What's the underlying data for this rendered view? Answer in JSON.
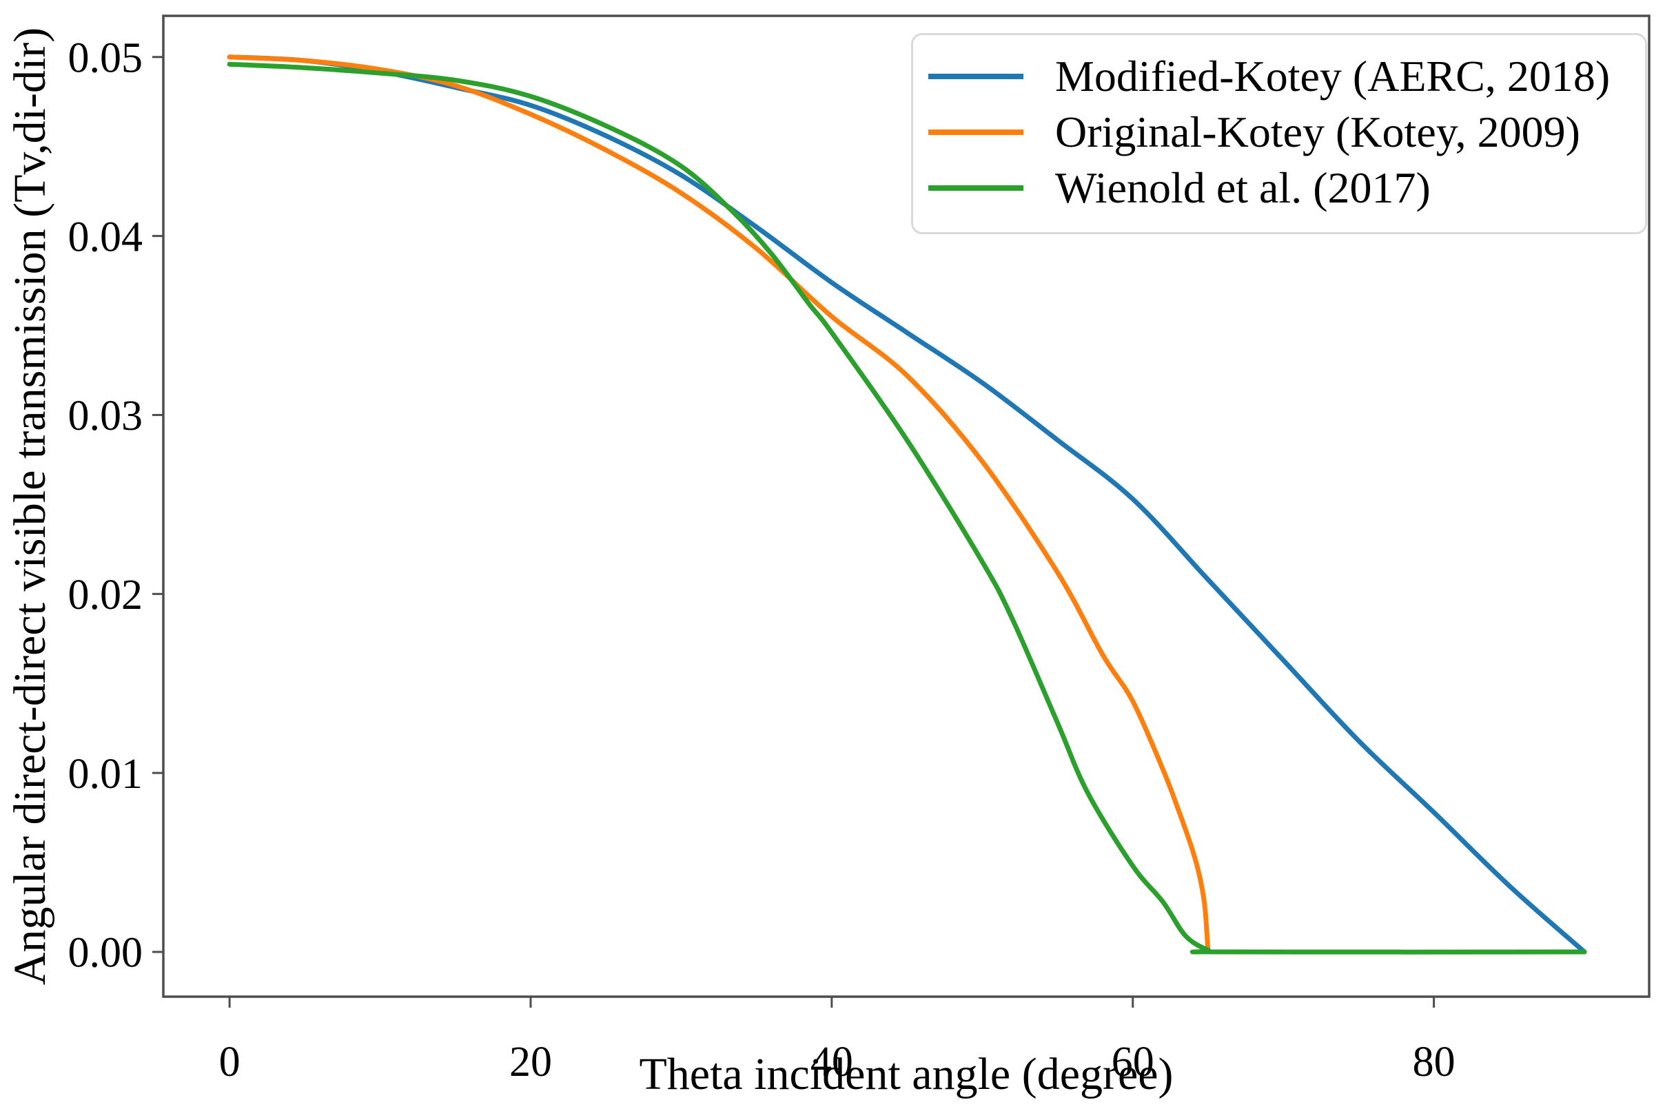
{
  "figure": {
    "background": "#ffffff",
    "text_color": "#000000",
    "axis_color": "#4d4d4d"
  },
  "chart_data": {
    "type": "line",
    "title": "",
    "xlabel": "Theta incident angle (degree)",
    "ylabel": "Angular direct-direct visible transmission (Tv,di-dir)",
    "xlim": [
      -4.4,
      94.3
    ],
    "ylim": [
      -0.0025,
      0.0523
    ],
    "grid": false,
    "legend_position": "upper right",
    "x_ticks": [
      {
        "value": 0,
        "label": "0"
      },
      {
        "value": 20,
        "label": "20"
      },
      {
        "value": 40,
        "label": "40"
      },
      {
        "value": 60,
        "label": "60"
      },
      {
        "value": 80,
        "label": "80"
      }
    ],
    "y_ticks": [
      {
        "value": 0.0,
        "label": "0.00"
      },
      {
        "value": 0.01,
        "label": "0.01"
      },
      {
        "value": 0.02,
        "label": "0.02"
      },
      {
        "value": 0.03,
        "label": "0.03"
      },
      {
        "value": 0.04,
        "label": "0.04"
      },
      {
        "value": 0.05,
        "label": "0.05"
      }
    ],
    "series": [
      {
        "name": "Modified-Kotey (AERC, 2018)",
        "color": "#1f77b4",
        "points": [
          [
            0,
            0.05
          ],
          [
            5,
            0.0498
          ],
          [
            10,
            0.0492
          ],
          [
            15,
            0.0483
          ],
          [
            20,
            0.0473
          ],
          [
            25,
            0.0456
          ],
          [
            30,
            0.0434
          ],
          [
            35,
            0.0405
          ],
          [
            40,
            0.0374
          ],
          [
            45,
            0.0346
          ],
          [
            50,
            0.0318
          ],
          [
            55,
            0.0286
          ],
          [
            60,
            0.0253
          ],
          [
            65,
            0.0208
          ],
          [
            70,
            0.0163
          ],
          [
            75,
            0.0118
          ],
          [
            80,
            0.0078
          ],
          [
            85,
            0.0037
          ],
          [
            90,
            0.0
          ]
        ]
      },
      {
        "name": "Original-Kotey (Kotey, 2009)",
        "color": "#ff7f0e",
        "points": [
          [
            0,
            0.05
          ],
          [
            5,
            0.0498
          ],
          [
            10,
            0.0493
          ],
          [
            15,
            0.0484
          ],
          [
            20,
            0.0468
          ],
          [
            25,
            0.0448
          ],
          [
            30,
            0.0424
          ],
          [
            35,
            0.0393
          ],
          [
            40,
            0.0355
          ],
          [
            45,
            0.0322
          ],
          [
            50,
            0.0274
          ],
          [
            55,
            0.0212
          ],
          [
            58,
            0.0166
          ],
          [
            60,
            0.014
          ],
          [
            62,
            0.0102
          ],
          [
            63,
            0.008
          ],
          [
            64,
            0.0056
          ],
          [
            64.5,
            0.004
          ],
          [
            64.8,
            0.0024
          ],
          [
            65,
            0.0
          ]
        ]
      },
      {
        "name": "Wienold et al. (2017)",
        "color": "#2ca02c",
        "points": [
          [
            0,
            0.0496
          ],
          [
            5,
            0.0494
          ],
          [
            10,
            0.0491
          ],
          [
            15,
            0.0487
          ],
          [
            20,
            0.0478
          ],
          [
            25.4,
            0.046
          ],
          [
            30,
            0.0439
          ],
          [
            33.5,
            0.0413
          ],
          [
            36,
            0.039
          ],
          [
            38.5,
            0.0362
          ],
          [
            40,
            0.0346
          ],
          [
            45,
            0.0286
          ],
          [
            50,
            0.0218
          ],
          [
            52,
            0.0186
          ],
          [
            55,
            0.0128
          ],
          [
            57,
            0.0089
          ],
          [
            60,
            0.0048
          ],
          [
            62,
            0.0028
          ],
          [
            63.5,
            0.0009
          ],
          [
            65,
            0.0001
          ],
          [
            66,
            0.0
          ],
          [
            90,
            0.0
          ]
        ]
      }
    ]
  }
}
